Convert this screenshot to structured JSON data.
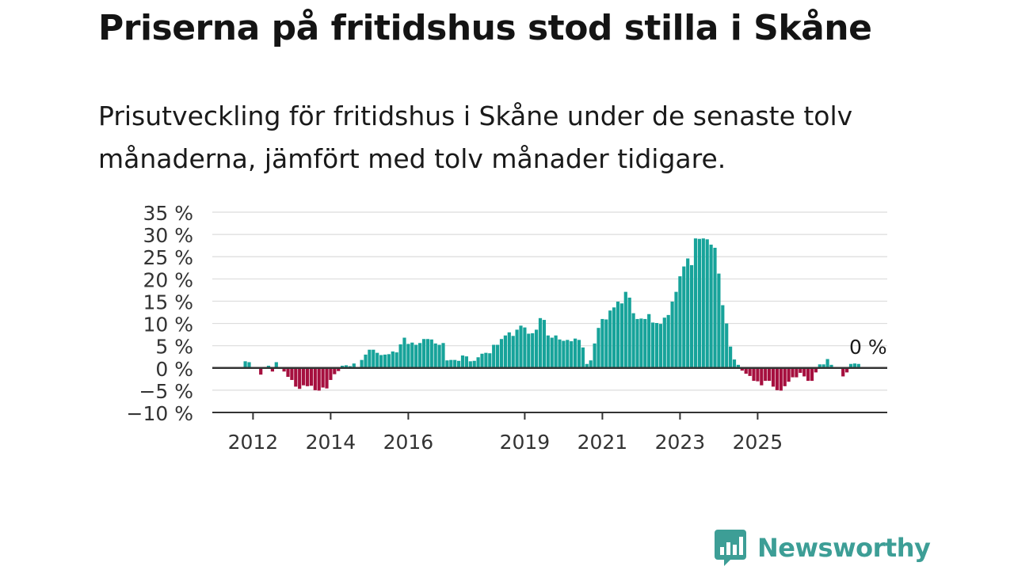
{
  "title": "Priserna på fritidshus stod stilla i Skåne",
  "subtitle": "Prisutveckling för fritidshus i Skåne under de senaste tolv månaderna, jämfört med tolv månader tidigare.",
  "brand": {
    "name": "Newsworthy",
    "color": "#3d9e96",
    "icon": "newsworthy-chart-bubble-icon"
  },
  "colors": {
    "positive": "#17a39a",
    "negative": "#a6103f",
    "grid": "#dcdcdc",
    "zero_line": "#333333",
    "text": "#333333"
  },
  "chart_data": {
    "type": "bar",
    "title": "",
    "xlabel": "",
    "ylabel": "",
    "ylim": [
      -10,
      35
    ],
    "y_ticks": [
      35,
      30,
      25,
      20,
      15,
      10,
      5,
      0,
      -5,
      -10
    ],
    "y_tick_labels": [
      "35 %",
      "30 %",
      "25 %",
      "20 %",
      "15 %",
      "10 %",
      "5 %",
      "0 %",
      "−5 %",
      "−10 %"
    ],
    "x_tick_labels": [
      "2012",
      "2014",
      "2016",
      "2019",
      "2021",
      "2023",
      "2025"
    ],
    "x_tick_index": [
      2,
      22,
      42,
      72,
      92,
      112,
      132
    ],
    "annotation": "0 %",
    "series": [
      {
        "values": [
          1.5,
          1.3,
          0,
          0,
          -1.5,
          0.1,
          0.5,
          -0.8,
          1.3,
          0.1,
          -0.8,
          -2.0,
          -2.7,
          -4.2,
          -4.7,
          -3.9,
          -4.1,
          -4.0,
          -5.0,
          -5.1,
          -4.4,
          -4.6,
          -2.7,
          -1.4,
          -0.7,
          0.5,
          0.6,
          0.4,
          1.0,
          0.1,
          1.8,
          3.0,
          4.1,
          4.1,
          3.4,
          2.9,
          3.0,
          3.1,
          3.7,
          3.5,
          5.3,
          6.8,
          5.4,
          5.7,
          5.2,
          5.6,
          6.5,
          6.5,
          6.4,
          5.5,
          5.2,
          5.6,
          1.7,
          1.8,
          1.8,
          1.6,
          2.8,
          2.6,
          1.5,
          1.6,
          2.4,
          3.2,
          3.4,
          3.3,
          5.2,
          5.2,
          6.5,
          7.3,
          8.0,
          7.2,
          8.6,
          9.5,
          9.1,
          7.7,
          7.8,
          8.6,
          11.2,
          10.8,
          7.3,
          6.8,
          7.3,
          6.4,
          6.1,
          6.3,
          6.0,
          6.6,
          6.3,
          4.6,
          0.9,
          1.7,
          5.5,
          9.0,
          11.0,
          10.9,
          12.9,
          13.6,
          14.9,
          14.5,
          17.1,
          15.8,
          12.3,
          11.0,
          11.1,
          11.0,
          12.1,
          10.2,
          10.1,
          9.9,
          11.3,
          11.9,
          14.9,
          17.1,
          20.6,
          22.8,
          24.6,
          23.1,
          29.1,
          29.0,
          29.1,
          28.9,
          27.7,
          27.0,
          21.2,
          14.1,
          10.0,
          4.8,
          1.9,
          0.7,
          -0.6,
          -1.3,
          -1.8,
          -2.9,
          -3.0,
          -3.9,
          -2.9,
          -2.9,
          -4.2,
          -5.0,
          -5.1,
          -4.1,
          -3.1,
          -2.1,
          -2.1,
          -1.1,
          -1.9,
          -2.9,
          -2.9,
          -1.0,
          0.8,
          0.8,
          2.0,
          0.7,
          0,
          0,
          -1.9,
          -1.0,
          0.9,
          1.0,
          0.9
        ]
      }
    ]
  }
}
